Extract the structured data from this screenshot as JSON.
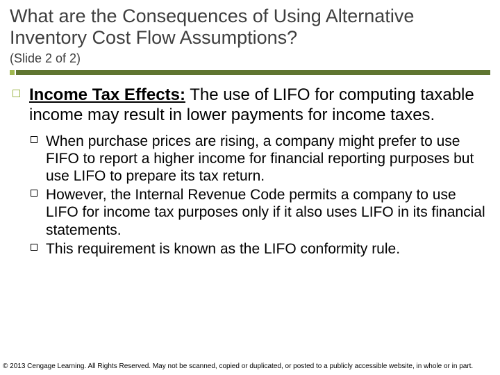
{
  "colors": {
    "accent_light": "#a0b850",
    "accent_dark": "#5f7530",
    "title_color": "#3e3e3e",
    "text_color": "#000000",
    "background": "#ffffff"
  },
  "typography": {
    "title_fontsize": 27,
    "subtitle_fontsize": 18,
    "l1_fontsize": 24,
    "l2_fontsize": 21,
    "footer_fontsize": 10,
    "font_family": "Arial"
  },
  "title": "What are the Consequences of Using Alternative Inventory Cost Flow Assumptions?",
  "subtitle": "(Slide 2 of 2)",
  "l1": {
    "lead": "Income Tax Effects:",
    "rest": " The use of LIFO for computing taxable income may result in lower payments for income taxes."
  },
  "l2": [
    {
      "lead": "When",
      "rest": " purchase prices are rising, a company might prefer to use FIFO to report a higher income for financial reporting purposes but use LIFO to prepare its tax return."
    },
    {
      "lead": "However,",
      "rest": " the Internal Revenue Code permits a company to use LIFO for income tax purposes only if it also uses LIFO in its financial statements."
    },
    {
      "lead": "This",
      "rest": " requirement is known as the LIFO conformity rule."
    }
  ],
  "footer": "© 2013 Cengage Learning. All Rights Reserved. May not be scanned, copied or duplicated, or posted to a publicly accessible website, in whole or in part."
}
